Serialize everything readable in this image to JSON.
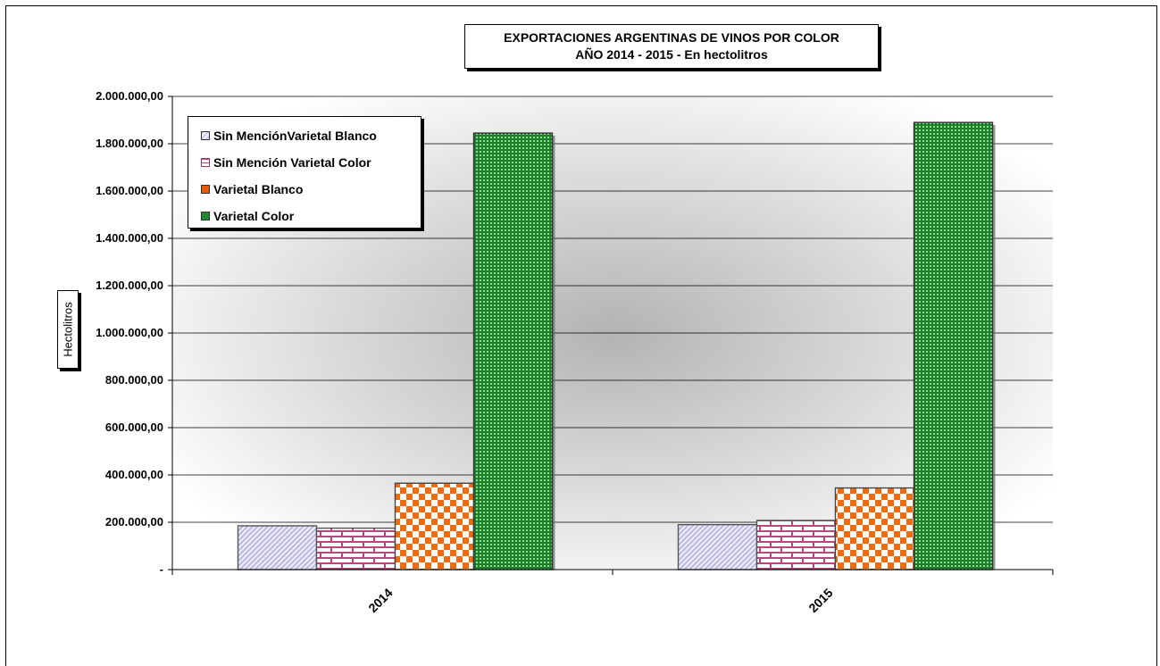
{
  "chart_data": {
    "type": "bar",
    "title": "EXPORTACIONES ARGENTINAS DE VINOS POR COLOR",
    "subtitle": "AÑO 2014 - 2015 - En hectolitros",
    "xlabel": "",
    "ylabel": "Hectolitros",
    "categories": [
      "2014",
      "2015"
    ],
    "ylim": [
      0,
      2000000
    ],
    "yticks": [
      {
        "value": 0,
        "label": "-"
      },
      {
        "value": 200000,
        "label": "200.000,00"
      },
      {
        "value": 400000,
        "label": "400.000,00"
      },
      {
        "value": 600000,
        "label": "600.000,00"
      },
      {
        "value": 800000,
        "label": "800.000,00"
      },
      {
        "value": 1000000,
        "label": "1.000.000,00"
      },
      {
        "value": 1200000,
        "label": "1.200.000,00"
      },
      {
        "value": 1400000,
        "label": "1.400.000,00"
      },
      {
        "value": 1600000,
        "label": "1.600.000,00"
      },
      {
        "value": 1800000,
        "label": "1.800.000,00"
      },
      {
        "value": 2000000,
        "label": "2.000.000,00"
      }
    ],
    "grid": true,
    "legend_position": "top-left",
    "series": [
      {
        "name": "Sin MenciónVarietal Blanco",
        "values": [
          185000,
          190000
        ],
        "color": "#c9c9e8"
      },
      {
        "name": "Sin Mención Varietal Color",
        "values": [
          175000,
          208000
        ],
        "color": "#b24a7d"
      },
      {
        "name": "Varietal Blanco",
        "values": [
          365000,
          345000
        ],
        "color": "#e55d0a"
      },
      {
        "name": "Varietal Color",
        "values": [
          1845000,
          1890000
        ],
        "color": "#1f8a2f"
      }
    ]
  }
}
